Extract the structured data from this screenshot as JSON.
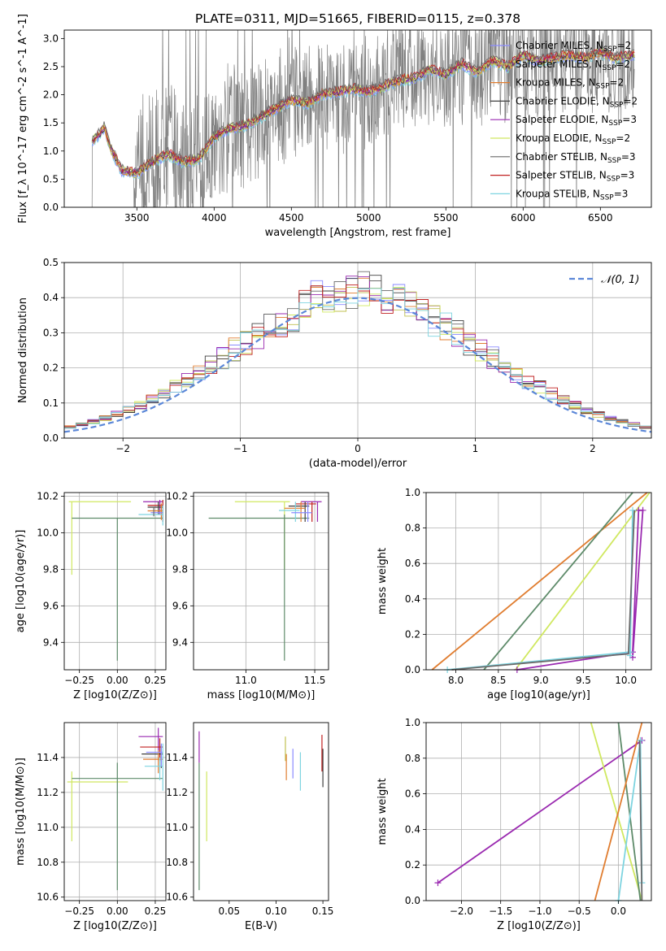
{
  "colors": {
    "chab_miles": "#8a8aff",
    "salp_miles": "#c0c050",
    "kroupa_miles": "#e07d30",
    "chab_elodie": "#404040",
    "salp_elodie": "#9a2ab0",
    "kroupa_elodie": "#d0e860",
    "chab_stelib": "#6a6a6a",
    "salp_stelib": "#c02020",
    "kroupa_stelib": "#7ed4e0",
    "data_gray": "#808080",
    "gauss": "#5b87d8",
    "green_fit": "#5e8b6a"
  },
  "chart_data": [
    {
      "id": "spectrum",
      "type": "line",
      "title": "PLATE=0311, MJD=51665, FIBERID=0115, z=0.378",
      "xlabel": "wavelength [Angstrom, rest frame]",
      "ylabel": "Flux [f_λ 10^-17 erg cm^-2 s^-1 A^-1]",
      "xlim": [
        3030,
        6830
      ],
      "ylim": [
        0,
        3.15
      ],
      "xticks": [
        3500,
        4000,
        4500,
        5000,
        5500,
        6000,
        6500
      ],
      "yticks": [
        0.0,
        0.5,
        1.0,
        1.5,
        2.0,
        2.5,
        3.0
      ],
      "grid": false,
      "legend_position": "top-right",
      "legend": [
        {
          "label": "Chabrier MILES, N",
          "sub": "SSP",
          "suffix": "=2",
          "color_key": "chab_miles"
        },
        {
          "label": "Salpeter MILES, N",
          "sub": "SSP",
          "suffix": "=2",
          "color_key": "salp_miles"
        },
        {
          "label": "Kroupa MILES, N",
          "sub": "SSP",
          "suffix": "=2",
          "color_key": "kroupa_miles"
        },
        {
          "label": "Chabrier ELODIE, N",
          "sub": "SSP",
          "suffix": "=2",
          "color_key": "chab_elodie"
        },
        {
          "label": "Salpeter ELODIE, N",
          "sub": "SSP",
          "suffix": "=3",
          "color_key": "salp_elodie"
        },
        {
          "label": "Kroupa ELODIE, N",
          "sub": "SSP",
          "suffix": "=2",
          "color_key": "kroupa_elodie"
        },
        {
          "label": "Chabrier STELIB, N",
          "sub": "SSP",
          "suffix": "=3",
          "color_key": "chab_stelib"
        },
        {
          "label": "Salpeter STELIB, N",
          "sub": "SSP",
          "suffix": "=3",
          "color_key": "salp_stelib"
        },
        {
          "label": "Kroupa STELIB, N",
          "sub": "SSP",
          "suffix": "=3",
          "color_key": "kroupa_stelib"
        }
      ],
      "model_continuum": {
        "x": [
          3200,
          3260,
          3290,
          3330,
          3400,
          3500,
          3600,
          3700,
          3800,
          3900,
          4000,
          4100,
          4200,
          4300,
          4400,
          4500,
          4600,
          4700,
          4800,
          4900,
          5000,
          5100,
          5200,
          5300,
          5400,
          5500,
          5600,
          5700,
          5800,
          5900,
          6000,
          6100,
          6200,
          6300,
          6400,
          6500,
          6600,
          6700
        ],
        "y": [
          1.15,
          1.3,
          1.42,
          1.05,
          0.65,
          0.6,
          0.8,
          0.95,
          0.8,
          0.85,
          1.25,
          1.4,
          1.45,
          1.6,
          1.75,
          1.9,
          1.85,
          2.0,
          2.05,
          2.1,
          2.05,
          2.15,
          2.25,
          2.3,
          2.45,
          2.35,
          2.55,
          2.4,
          2.6,
          2.5,
          2.7,
          2.6,
          2.65,
          2.7,
          2.65,
          2.75,
          2.65,
          2.7
        ]
      }
    },
    {
      "id": "residuals",
      "type": "step",
      "xlabel": "(data-model)/error",
      "ylabel": "Normed distribution",
      "xlim": [
        -2.5,
        2.5
      ],
      "ylim": [
        0,
        0.5
      ],
      "xticks": [
        -2,
        -1,
        0,
        1,
        2
      ],
      "yticks": [
        0.0,
        0.1,
        0.2,
        0.3,
        0.4,
        0.5
      ],
      "grid": true,
      "legend_position": "top-right",
      "legend": [
        {
          "label": "𝒩(0, 1)",
          "style": "dashed",
          "color_key": "gauss"
        }
      ],
      "bin_width": 0.1,
      "bin_start": -2.5
    },
    {
      "id": "age_vs_Z",
      "type": "errorbar",
      "xlabel": "Z [log10(Z/Z⊙)]",
      "ylabel": "age  [log10(age/yr)]",
      "xlim": [
        -0.35,
        0.32
      ],
      "ylim": [
        9.25,
        10.22
      ],
      "xticks": [
        -0.25,
        0.0,
        0.25
      ],
      "yticks": [
        9.4,
        9.6,
        9.8,
        10.0,
        10.2
      ],
      "grid": true
    },
    {
      "id": "age_vs_mass",
      "type": "errorbar",
      "xlabel": "mass [log10(M/M⊙)]",
      "xlim": [
        10.62,
        11.6
      ],
      "ylim": [
        9.25,
        10.22
      ],
      "xticks": [
        11.0,
        11.5
      ],
      "yticks": [
        9.4,
        9.6,
        9.8,
        10.0,
        10.2
      ],
      "grid": true
    },
    {
      "id": "weight_vs_age",
      "type": "line",
      "xlabel": "age  [log10(age/yr)]",
      "ylabel": "mass weight",
      "xlim": [
        7.65,
        10.3
      ],
      "ylim": [
        0.0,
        1.0
      ],
      "xticks": [
        8.0,
        8.5,
        9.0,
        9.5,
        10.0
      ],
      "yticks": [
        0.0,
        0.2,
        0.4,
        0.6,
        0.8,
        1.0
      ],
      "grid": true
    },
    {
      "id": "mass_vs_Z",
      "type": "errorbar",
      "xlabel": "Z [log10(Z/Z⊙)]",
      "ylabel": "mass [log10(M/M⊙)]",
      "xlim": [
        -0.35,
        0.32
      ],
      "ylim": [
        10.58,
        11.6
      ],
      "xticks": [
        -0.25,
        0.0,
        0.25
      ],
      "yticks": [
        10.6,
        10.8,
        11.0,
        11.2,
        11.4
      ],
      "grid": true
    },
    {
      "id": "mass_vs_ebv",
      "type": "errorbar",
      "xlabel": "E(B-V)",
      "xlim": [
        0.012,
        0.156
      ],
      "ylim": [
        10.58,
        11.6
      ],
      "xticks": [
        0.05,
        0.1,
        0.15
      ],
      "yticks": [
        10.6,
        10.8,
        11.0,
        11.2,
        11.4
      ],
      "grid": false
    },
    {
      "id": "weight_vs_Z",
      "type": "line",
      "xlabel": "Z [log10(Z/Z⊙)]",
      "ylabel": "mass weight",
      "xlim": [
        -2.45,
        0.42
      ],
      "ylim": [
        0.0,
        1.0
      ],
      "xticks": [
        -2.0,
        -1.5,
        -1.0,
        -0.5,
        0.0
      ],
      "yticks": [
        0.0,
        0.2,
        0.4,
        0.6,
        0.8,
        1.0
      ],
      "grid": true
    }
  ]
}
